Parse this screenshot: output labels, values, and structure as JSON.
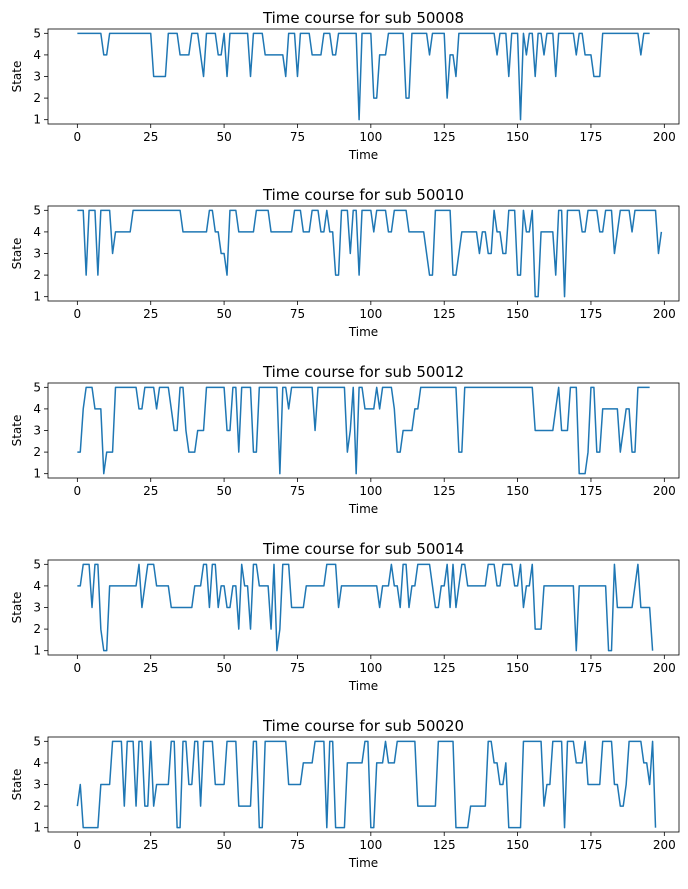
{
  "figure": {
    "background": "#ffffff",
    "line_color": "#1f77b4"
  },
  "chart_data": [
    {
      "type": "line",
      "title": "Time course for sub 50008",
      "xlabel": "Time",
      "ylabel": "State",
      "xlim": [
        -10,
        205
      ],
      "ylim": [
        0.8,
        5.2
      ],
      "xticks": [
        0,
        25,
        50,
        75,
        100,
        125,
        150,
        175,
        200
      ],
      "yticks": [
        1,
        2,
        3,
        4,
        5
      ],
      "grid": false,
      "y": [
        5,
        5,
        5,
        5,
        5,
        5,
        5,
        5,
        5,
        4,
        4,
        5,
        5,
        5,
        5,
        5,
        5,
        5,
        5,
        5,
        5,
        5,
        5,
        5,
        5,
        5,
        3,
        3,
        3,
        3,
        3,
        5,
        5,
        5,
        5,
        4,
        4,
        4,
        4,
        5,
        5,
        5,
        4,
        3,
        5,
        5,
        5,
        5,
        4,
        4,
        5,
        3,
        5,
        5,
        5,
        5,
        5,
        5,
        5,
        3,
        5,
        5,
        5,
        5,
        4,
        4,
        4,
        4,
        4,
        4,
        4,
        3,
        5,
        5,
        5,
        3,
        5,
        5,
        5,
        5,
        4,
        4,
        4,
        4,
        5,
        5,
        5,
        4,
        4,
        5,
        5,
        5,
        5,
        5,
        5,
        5,
        1,
        5,
        5,
        5,
        5,
        2,
        2,
        4,
        4,
        4,
        5,
        5,
        5,
        5,
        5,
        5,
        2,
        2,
        5,
        5,
        5,
        5,
        5,
        5,
        4,
        5,
        5,
        5,
        5,
        5,
        2,
        4,
        4,
        3,
        5,
        5,
        5,
        5,
        5,
        5,
        5,
        5,
        5,
        5,
        5,
        5,
        5,
        4,
        5,
        5,
        5,
        3,
        5,
        5,
        5,
        1,
        5,
        4,
        5,
        5,
        3,
        5,
        5,
        4,
        5,
        5,
        5,
        3,
        5,
        5,
        5,
        5,
        5,
        5,
        4,
        5,
        5,
        4,
        4,
        4,
        3,
        3,
        3,
        5,
        5,
        5,
        5,
        5,
        5,
        5,
        5,
        5,
        5,
        5,
        5,
        5,
        4,
        5,
        5,
        5
      ]
    },
    {
      "type": "line",
      "title": "Time course for sub 50010",
      "xlabel": "Time",
      "ylabel": "State",
      "xlim": [
        -10,
        205
      ],
      "ylim": [
        0.8,
        5.2
      ],
      "xticks": [
        0,
        25,
        50,
        75,
        100,
        125,
        150,
        175,
        200
      ],
      "yticks": [
        1,
        2,
        3,
        4,
        5
      ],
      "grid": false,
      "y": [
        5,
        5,
        5,
        2,
        5,
        5,
        5,
        2,
        5,
        5,
        5,
        5,
        3,
        4,
        4,
        4,
        4,
        4,
        4,
        5,
        5,
        5,
        5,
        5,
        5,
        5,
        5,
        5,
        5,
        5,
        5,
        5,
        5,
        5,
        5,
        5,
        4,
        4,
        4,
        4,
        4,
        4,
        4,
        4,
        4,
        5,
        5,
        4,
        4,
        3,
        3,
        2,
        5,
        5,
        5,
        4,
        4,
        4,
        4,
        4,
        4,
        5,
        5,
        5,
        5,
        5,
        4,
        4,
        4,
        4,
        4,
        4,
        4,
        4,
        5,
        5,
        5,
        4,
        4,
        4,
        5,
        5,
        5,
        4,
        4,
        5,
        4,
        4,
        2,
        2,
        5,
        5,
        5,
        3,
        5,
        5,
        2,
        5,
        5,
        5,
        5,
        4,
        5,
        5,
        5,
        5,
        4,
        4,
        5,
        5,
        5,
        5,
        5,
        4,
        4,
        4,
        4,
        4,
        4,
        3,
        2,
        2,
        5,
        5,
        5,
        5,
        5,
        5,
        2,
        2,
        3,
        4,
        4,
        4,
        4,
        4,
        4,
        3,
        4,
        4,
        3,
        3,
        5,
        4,
        4,
        3,
        3,
        5,
        5,
        5,
        2,
        2,
        5,
        4,
        4,
        5,
        1,
        1,
        4,
        4,
        4,
        4,
        4,
        2,
        5,
        5,
        1,
        5,
        5,
        5,
        5,
        5,
        4,
        4,
        5,
        5,
        5,
        5,
        4,
        4,
        5,
        5,
        5,
        3,
        4,
        5,
        5,
        5,
        5,
        4,
        5,
        5,
        5,
        5,
        5,
        5,
        5,
        5,
        3,
        4
      ]
    },
    {
      "type": "line",
      "title": "Time course for sub 50012",
      "xlabel": "Time",
      "ylabel": "State",
      "xlim": [
        -10,
        205
      ],
      "ylim": [
        0.8,
        5.2
      ],
      "xticks": [
        0,
        25,
        50,
        75,
        100,
        125,
        150,
        175,
        200
      ],
      "yticks": [
        1,
        2,
        3,
        4,
        5
      ],
      "grid": false,
      "y": [
        2,
        2,
        4,
        5,
        5,
        5,
        4,
        4,
        4,
        1,
        2,
        2,
        2,
        5,
        5,
        5,
        5,
        5,
        5,
        5,
        5,
        4,
        4,
        5,
        5,
        5,
        5,
        4,
        5,
        5,
        5,
        5,
        4,
        3,
        3,
        5,
        5,
        3,
        2,
        2,
        2,
        3,
        3,
        3,
        5,
        5,
        5,
        5,
        5,
        5,
        5,
        3,
        3,
        5,
        5,
        2,
        5,
        5,
        5,
        5,
        2,
        2,
        5,
        5,
        5,
        5,
        5,
        5,
        5,
        1,
        5,
        5,
        4,
        5,
        5,
        5,
        5,
        5,
        5,
        5,
        5,
        3,
        5,
        5,
        5,
        5,
        5,
        5,
        5,
        5,
        5,
        5,
        2,
        3,
        5,
        1,
        5,
        5,
        4,
        4,
        4,
        4,
        5,
        4,
        5,
        5,
        5,
        5,
        4,
        2,
        2,
        3,
        3,
        3,
        3,
        4,
        4,
        5,
        5,
        5,
        5,
        5,
        5,
        5,
        5,
        5,
        5,
        5,
        5,
        5,
        2,
        2,
        5,
        5,
        5,
        5,
        5,
        5,
        5,
        5,
        5,
        5,
        5,
        5,
        5,
        5,
        5,
        5,
        5,
        5,
        5,
        5,
        5,
        5,
        5,
        5,
        3,
        3,
        3,
        3,
        3,
        3,
        3,
        4,
        5,
        3,
        3,
        3,
        5,
        5,
        5,
        1,
        1,
        1,
        2,
        5,
        5,
        2,
        2,
        4,
        4,
        4,
        4,
        4,
        4,
        2,
        3,
        4,
        4,
        2,
        2,
        5,
        5,
        5,
        5,
        5
      ]
    },
    {
      "type": "line",
      "title": "Time course for sub 50014",
      "xlabel": "Time",
      "ylabel": "State",
      "xlim": [
        -10,
        205
      ],
      "ylim": [
        0.8,
        5.2
      ],
      "xticks": [
        0,
        25,
        50,
        75,
        100,
        125,
        150,
        175,
        200
      ],
      "yticks": [
        1,
        2,
        3,
        4,
        5
      ],
      "grid": false,
      "y": [
        4,
        4,
        5,
        5,
        5,
        3,
        5,
        5,
        2,
        1,
        1,
        4,
        4,
        4,
        4,
        4,
        4,
        4,
        4,
        4,
        4,
        5,
        3,
        4,
        5,
        5,
        5,
        4,
        4,
        4,
        4,
        4,
        3,
        3,
        3,
        3,
        3,
        3,
        3,
        3,
        4,
        4,
        4,
        5,
        5,
        3,
        5,
        5,
        3,
        4,
        4,
        3,
        3,
        4,
        4,
        2,
        5,
        4,
        4,
        2,
        5,
        5,
        4,
        4,
        4,
        4,
        2,
        5,
        1,
        2,
        5,
        5,
        5,
        3,
        3,
        3,
        3,
        3,
        4,
        4,
        4,
        4,
        4,
        4,
        4,
        5,
        5,
        5,
        5,
        3,
        4,
        4,
        4,
        4,
        4,
        4,
        4,
        4,
        4,
        4,
        4,
        4,
        4,
        3,
        4,
        4,
        4,
        5,
        4,
        4,
        3,
        5,
        5,
        3,
        4,
        4,
        5,
        5,
        5,
        5,
        5,
        4,
        3,
        3,
        4,
        4,
        5,
        3,
        5,
        3,
        4,
        5,
        5,
        4,
        4,
        4,
        4,
        4,
        4,
        4,
        5,
        5,
        5,
        4,
        4,
        5,
        5,
        5,
        5,
        4,
        4,
        5,
        3,
        4,
        4,
        5,
        2,
        2,
        2,
        4,
        4,
        4,
        4,
        4,
        4,
        4,
        4,
        4,
        4,
        4,
        1,
        4,
        4,
        4,
        4,
        4,
        4,
        4,
        4,
        4,
        4,
        1,
        1,
        5,
        3,
        3,
        3,
        3,
        3,
        3,
        4,
        5,
        3,
        3,
        3,
        3,
        1
      ]
    },
    {
      "type": "line",
      "title": "Time course for sub 50020",
      "xlabel": "Time",
      "ylabel": "State",
      "xlim": [
        -10,
        205
      ],
      "ylim": [
        0.8,
        5.2
      ],
      "xticks": [
        0,
        25,
        50,
        75,
        100,
        125,
        150,
        175,
        200
      ],
      "yticks": [
        1,
        2,
        3,
        4,
        5
      ],
      "grid": false,
      "y": [
        2,
        3,
        1,
        1,
        1,
        1,
        1,
        1,
        3,
        3,
        3,
        3,
        5,
        5,
        5,
        5,
        2,
        5,
        5,
        5,
        2,
        5,
        5,
        2,
        2,
        5,
        2,
        3,
        3,
        3,
        3,
        3,
        5,
        5,
        1,
        1,
        5,
        5,
        3,
        3,
        5,
        5,
        2,
        5,
        5,
        5,
        5,
        3,
        3,
        3,
        3,
        5,
        5,
        5,
        5,
        2,
        2,
        2,
        2,
        2,
        5,
        5,
        1,
        1,
        5,
        5,
        5,
        5,
        5,
        5,
        5,
        5,
        3,
        3,
        3,
        3,
        3,
        4,
        4,
        4,
        4,
        5,
        5,
        5,
        5,
        1,
        5,
        5,
        1,
        1,
        1,
        1,
        4,
        4,
        4,
        4,
        4,
        4,
        5,
        5,
        1,
        1,
        4,
        4,
        4,
        5,
        4,
        4,
        4,
        5,
        5,
        5,
        5,
        5,
        5,
        5,
        2,
        2,
        2,
        2,
        2,
        2,
        2,
        5,
        5,
        5,
        5,
        5,
        5,
        1,
        1,
        1,
        1,
        1,
        2,
        2,
        2,
        2,
        2,
        2,
        5,
        5,
        4,
        4,
        3,
        3,
        4,
        1,
        1,
        1,
        1,
        1,
        5,
        5,
        5,
        5,
        5,
        5,
        5,
        2,
        3,
        3,
        5,
        5,
        5,
        5,
        1,
        5,
        5,
        5,
        4,
        4,
        4,
        5,
        3,
        3,
        3,
        3,
        3,
        5,
        5,
        5,
        5,
        3,
        3,
        2,
        2,
        3,
        5,
        5,
        5,
        5,
        5,
        4,
        4,
        3,
        5,
        1
      ]
    }
  ]
}
